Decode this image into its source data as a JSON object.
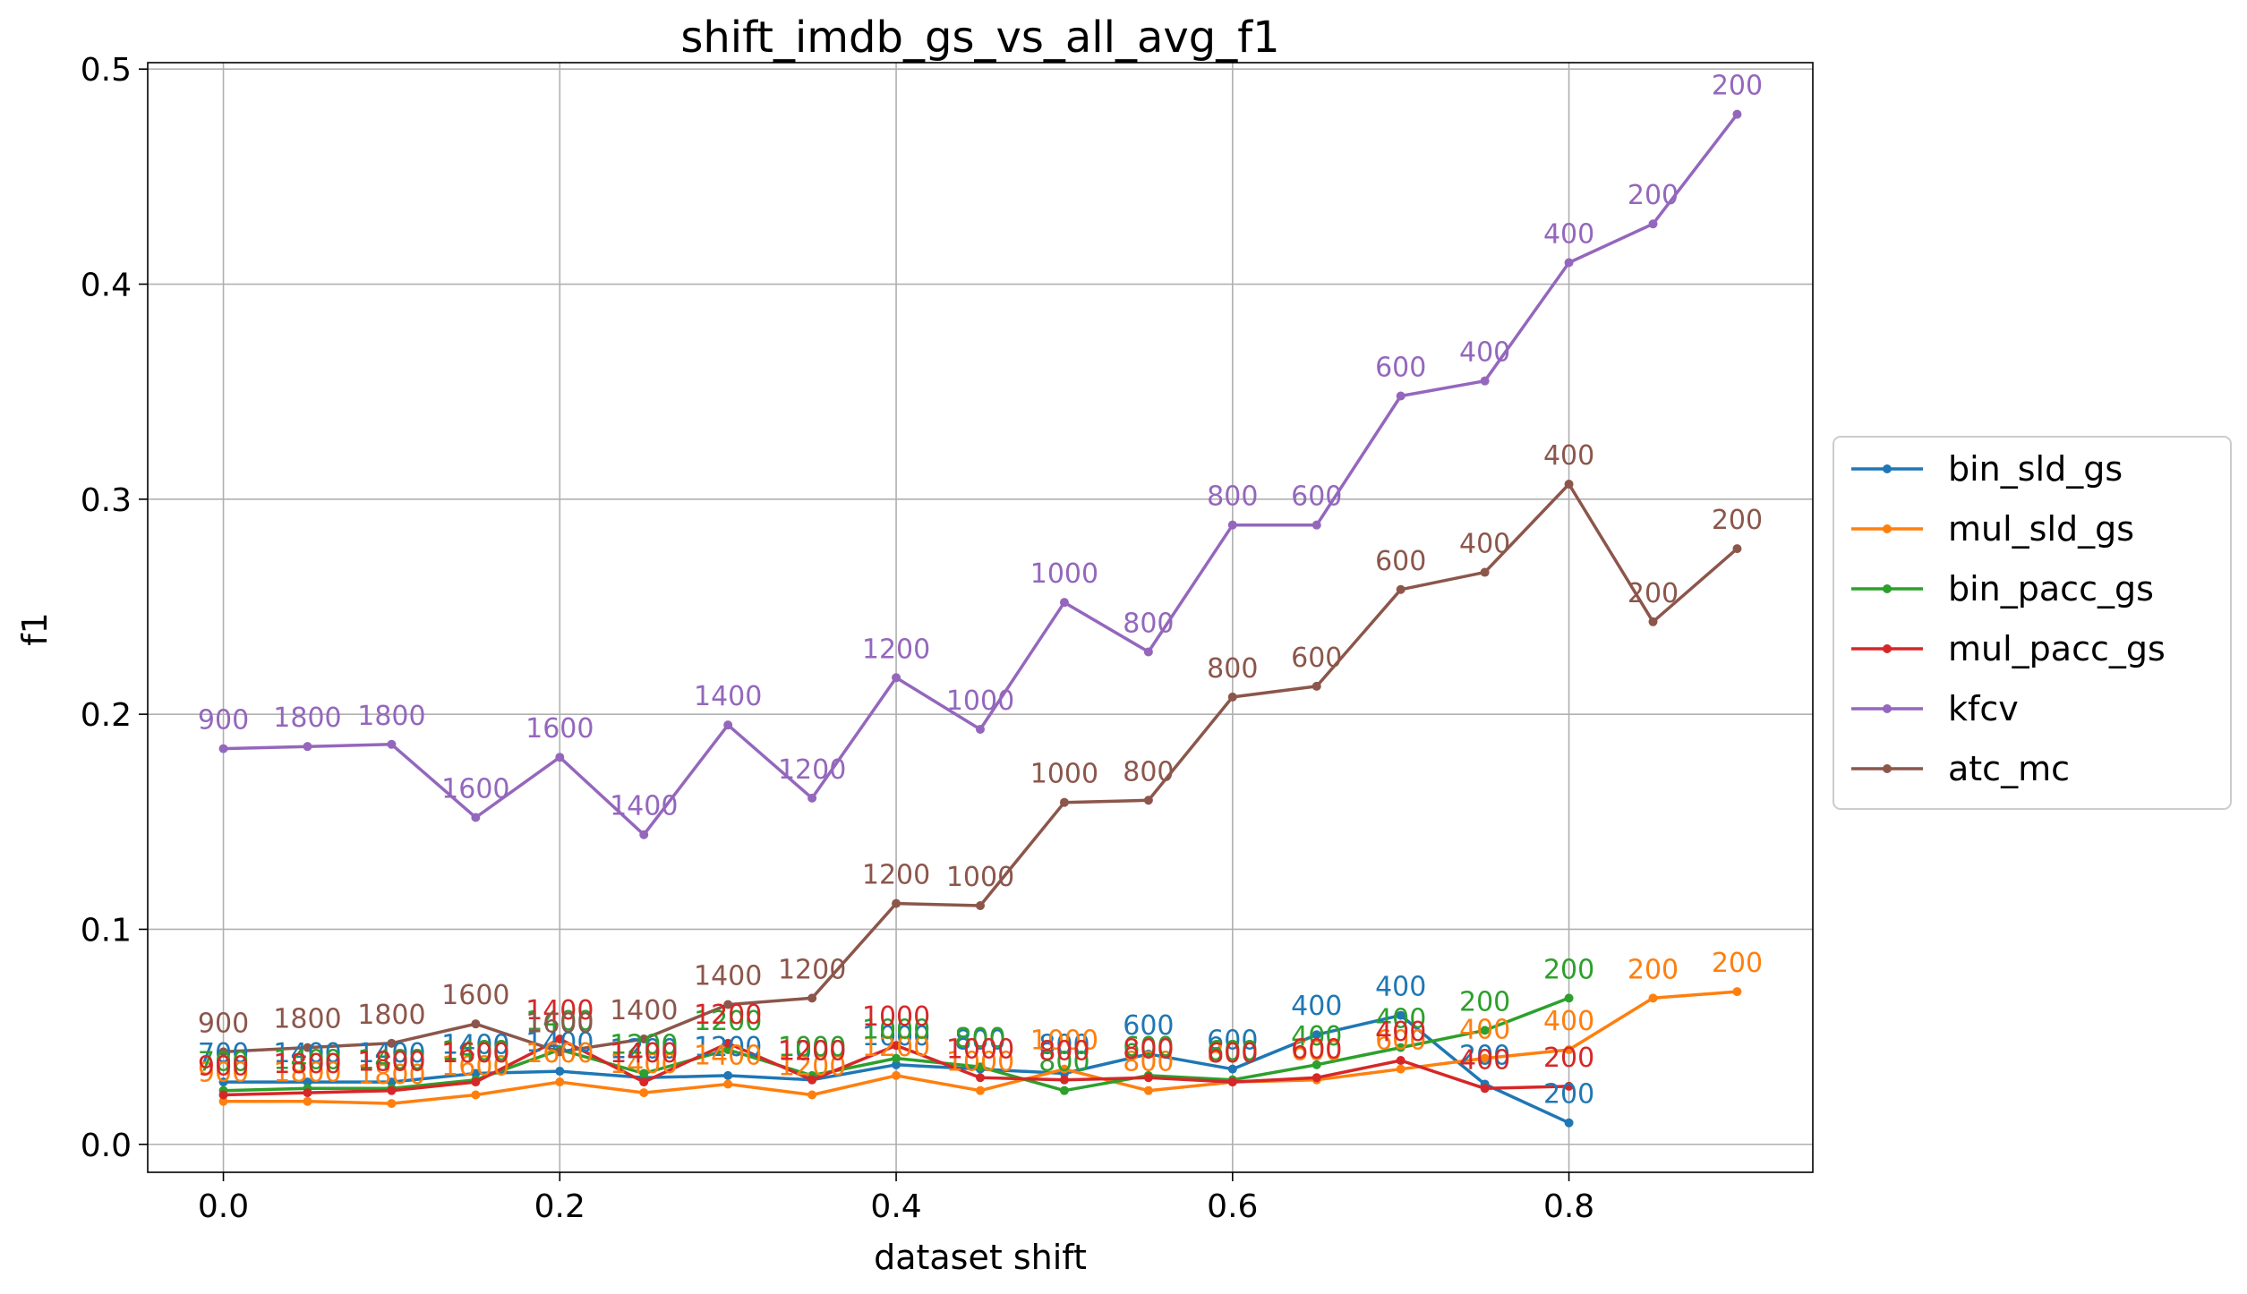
{
  "chart_data": {
    "type": "line",
    "title": "shift_imdb_gs_vs_all_avg_f1",
    "xlabel": "dataset shift",
    "ylabel": "f1",
    "xlim": [
      -0.045,
      0.945
    ],
    "ylim": [
      -0.013,
      0.503
    ],
    "xticks": [
      0.0,
      0.2,
      0.4,
      0.6,
      0.8
    ],
    "xtick_labels": [
      "0.0",
      "0.2",
      "0.4",
      "0.6",
      "0.8"
    ],
    "yticks": [
      0.0,
      0.1,
      0.2,
      0.3,
      0.4,
      0.5
    ],
    "ytick_labels": [
      "0.0",
      "0.1",
      "0.2",
      "0.3",
      "0.4",
      "0.5"
    ],
    "grid": true,
    "legend_position": "right-outside",
    "series": [
      {
        "name": "bin_sld_gs",
        "color": "#1f77b4",
        "x": [
          0.0,
          0.05,
          0.1,
          0.15,
          0.2,
          0.25,
          0.3,
          0.35,
          0.4,
          0.45,
          0.5,
          0.55,
          0.6,
          0.65,
          0.7,
          0.75,
          0.8
        ],
        "y": [
          0.029,
          0.029,
          0.029,
          0.033,
          0.034,
          0.031,
          0.032,
          0.03,
          0.037,
          0.035,
          0.033,
          0.042,
          0.035,
          0.051,
          0.06,
          0.028,
          0.01
        ],
        "labels": [
          "700",
          "1400",
          "1400",
          "1400",
          "1400",
          "1200",
          "1200",
          "1000",
          "1000",
          "800",
          "800",
          "600",
          "600",
          "400",
          "400",
          "200",
          "200"
        ]
      },
      {
        "name": "mul_sld_gs",
        "color": "#ff7f0e",
        "x": [
          0.0,
          0.05,
          0.1,
          0.15,
          0.2,
          0.25,
          0.3,
          0.35,
          0.4,
          0.45,
          0.5,
          0.55,
          0.6,
          0.65,
          0.7,
          0.75,
          0.8,
          0.85,
          0.9
        ],
        "y": [
          0.02,
          0.02,
          0.019,
          0.023,
          0.029,
          0.024,
          0.028,
          0.023,
          0.032,
          0.025,
          0.035,
          0.025,
          0.029,
          0.03,
          0.035,
          0.04,
          0.044,
          0.068,
          0.071
        ],
        "labels": [
          "900",
          "1800",
          "1800",
          "1600",
          "1600",
          "1400",
          "1400",
          "1200",
          "1200",
          "1000",
          "1000",
          "800",
          "800",
          "600",
          "600",
          "400",
          "400",
          "200",
          "200"
        ]
      },
      {
        "name": "bin_pacc_gs",
        "color": "#2ca02c",
        "x": [
          0.0,
          0.05,
          0.1,
          0.15,
          0.2,
          0.25,
          0.3,
          0.35,
          0.4,
          0.45,
          0.5,
          0.55,
          0.6,
          0.65,
          0.7,
          0.75,
          0.8
        ],
        "y": [
          0.025,
          0.026,
          0.026,
          0.03,
          0.044,
          0.033,
          0.044,
          0.032,
          0.04,
          0.036,
          0.025,
          0.032,
          0.03,
          0.037,
          0.045,
          0.053,
          0.068
        ],
        "labels": [
          "700",
          "1400",
          "1400",
          "1400",
          "1400",
          "1200",
          "1200",
          "1000",
          "1000",
          "800",
          "800",
          "600",
          "600",
          "400",
          "400",
          "200",
          "200"
        ]
      },
      {
        "name": "mul_pacc_gs",
        "color": "#d62728",
        "x": [
          0.0,
          0.05,
          0.1,
          0.15,
          0.2,
          0.25,
          0.3,
          0.35,
          0.4,
          0.45,
          0.5,
          0.55,
          0.6,
          0.65,
          0.7,
          0.75,
          0.8
        ],
        "y": [
          0.023,
          0.024,
          0.025,
          0.029,
          0.049,
          0.029,
          0.047,
          0.03,
          0.046,
          0.031,
          0.03,
          0.031,
          0.029,
          0.031,
          0.039,
          0.026,
          0.027
        ],
        "labels": [
          "900",
          "1800",
          "1800",
          "1600",
          "1400",
          "1400",
          "1200",
          "1200",
          "1000",
          "1000",
          "800",
          "800",
          "600",
          "600",
          "400",
          "400",
          "200"
        ]
      },
      {
        "name": "kfcv",
        "color": "#9467bd",
        "x": [
          0.0,
          0.05,
          0.1,
          0.15,
          0.2,
          0.25,
          0.3,
          0.35,
          0.4,
          0.45,
          0.5,
          0.55,
          0.6,
          0.65,
          0.7,
          0.75,
          0.8,
          0.85,
          0.9
        ],
        "y": [
          0.184,
          0.185,
          0.186,
          0.152,
          0.18,
          0.144,
          0.195,
          0.161,
          0.217,
          0.193,
          0.252,
          0.229,
          0.288,
          0.288,
          0.348,
          0.355,
          0.41,
          0.428,
          0.479
        ],
        "labels": [
          "900",
          "1800",
          "1800",
          "1600",
          "1600",
          "1400",
          "1400",
          "1200",
          "1200",
          "1000",
          "1000",
          "800",
          "800",
          "600",
          "600",
          "400",
          "400",
          "200",
          "200"
        ]
      },
      {
        "name": "atc_mc",
        "color": "#8c564b",
        "x": [
          0.0,
          0.05,
          0.1,
          0.15,
          0.2,
          0.25,
          0.3,
          0.35,
          0.4,
          0.45,
          0.5,
          0.55,
          0.6,
          0.65,
          0.7,
          0.75,
          0.8,
          0.85,
          0.9
        ],
        "y": [
          0.043,
          0.045,
          0.047,
          0.056,
          0.043,
          0.049,
          0.065,
          0.068,
          0.112,
          0.111,
          0.159,
          0.16,
          0.208,
          0.213,
          0.258,
          0.266,
          0.307,
          0.243,
          0.277
        ],
        "labels": [
          "900",
          "1800",
          "1800",
          "1600",
          "1600",
          "1400",
          "1400",
          "1200",
          "1200",
          "1000",
          "1000",
          "800",
          "800",
          "600",
          "600",
          "400",
          "400",
          "200",
          "200"
        ]
      }
    ]
  }
}
